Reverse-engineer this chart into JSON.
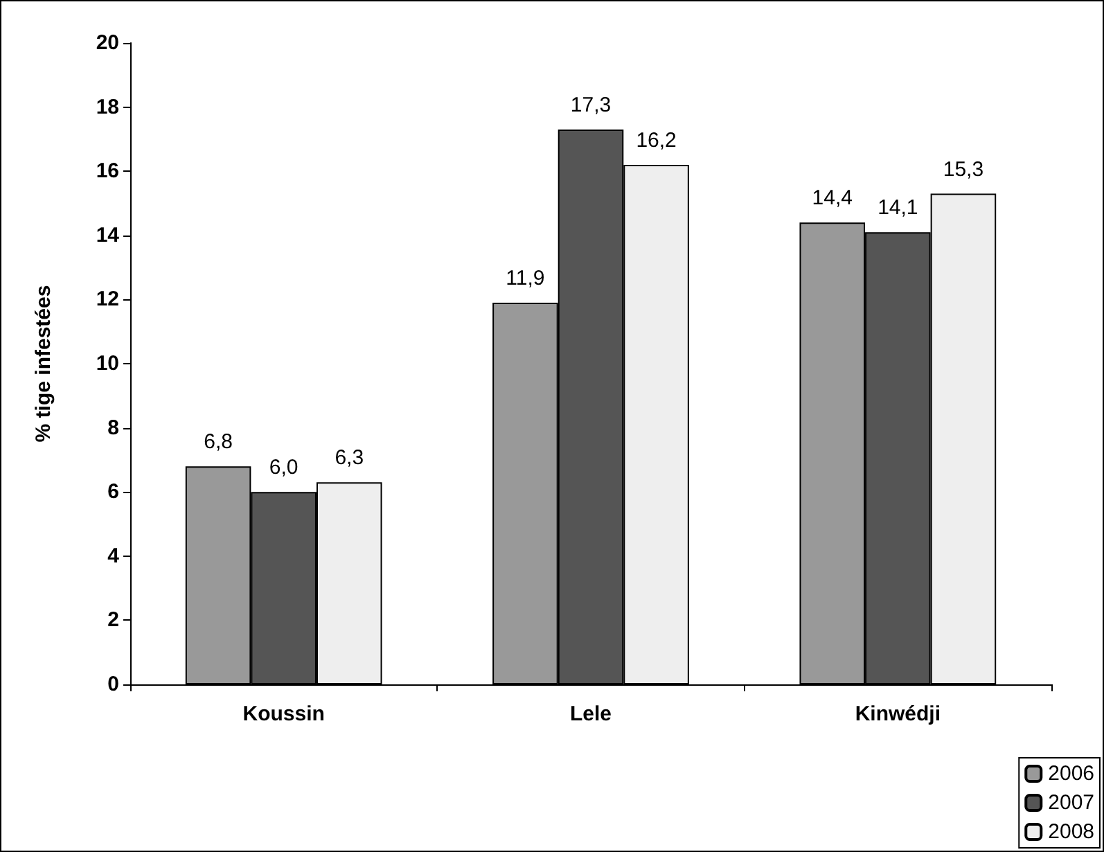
{
  "chart_data": {
    "type": "bar",
    "ylabel": "% tige infestées",
    "categories": [
      "Koussin",
      "Lele",
      "Kinwédji"
    ],
    "series": [
      {
        "name": "2006",
        "color": "#999999",
        "values": [
          6.8,
          11.9,
          14.4
        ],
        "value_labels": [
          "6,8",
          "11,9",
          "14,4"
        ]
      },
      {
        "name": "2007",
        "color": "#555555",
        "values": [
          6.0,
          17.3,
          14.1
        ],
        "value_labels": [
          "6,0",
          "17,3",
          "14,1"
        ]
      },
      {
        "name": "2008",
        "color": "#eeeeee",
        "values": [
          6.3,
          16.2,
          15.3
        ],
        "value_labels": [
          "6,3",
          "16,2",
          "15,3"
        ]
      }
    ],
    "ylim": [
      0,
      20
    ],
    "yticks": [
      0,
      2,
      4,
      6,
      8,
      10,
      12,
      14,
      16,
      18,
      20
    ],
    "grid": false,
    "legend": "bottom right"
  }
}
